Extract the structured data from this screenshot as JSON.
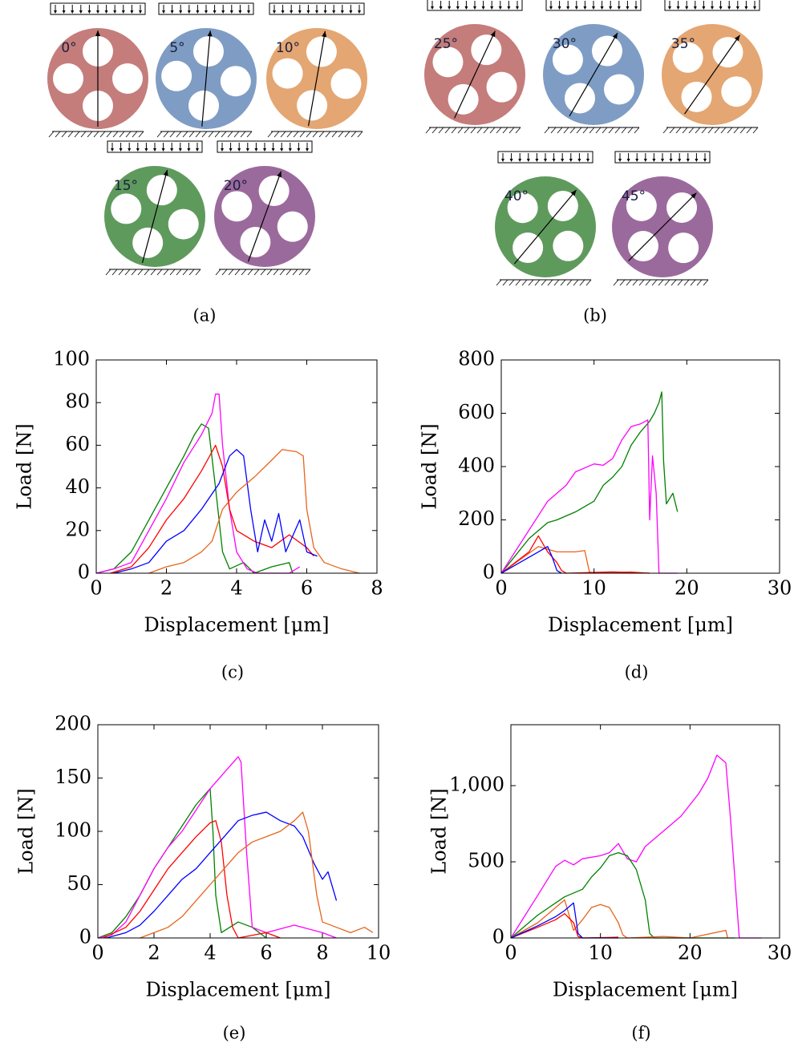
{
  "diagrams": [
    {
      "caption": "(a)",
      "disks": [
        {
          "label": "0°",
          "color": "#c47d7b"
        },
        {
          "label": "5°",
          "color": "#7f9dc4"
        },
        {
          "label": "10°",
          "color": "#e4a672"
        },
        {
          "label": "15°",
          "color": "#5f9a5d"
        },
        {
          "label": "20°",
          "color": "#9b6a9c"
        }
      ]
    },
    {
      "caption": "(b)",
      "disks": [
        {
          "label": "25°",
          "color": "#c47d7b"
        },
        {
          "label": "30°",
          "color": "#7f9dc4"
        },
        {
          "label": "35°",
          "color": "#e4a672"
        },
        {
          "label": "40°",
          "color": "#5f9a5d"
        },
        {
          "label": "45°",
          "color": "#9b6a9c"
        }
      ]
    }
  ],
  "chart_data": [
    {
      "type": "line",
      "caption": "(c)",
      "xlabel": "Displacement [μm]",
      "ylabel": "Load [N]",
      "xlim": [
        0,
        8
      ],
      "ylim": [
        0,
        100
      ],
      "xticks": [
        0,
        2,
        4,
        6,
        8
      ],
      "yticks": [
        0,
        20,
        40,
        60,
        80,
        100
      ],
      "series": [
        {
          "color": "#008000",
          "x": [
            0,
            0.5,
            1,
            1.5,
            2,
            2.5,
            2.8,
            3,
            3.2,
            3.4,
            3.6,
            3.8,
            4.2,
            4.5,
            5,
            5.5,
            5.6
          ],
          "values": [
            0,
            2,
            10,
            25,
            40,
            55,
            65,
            70,
            68,
            40,
            10,
            2,
            5,
            0,
            3,
            5,
            0
          ]
        },
        {
          "color": "#ff00ff",
          "x": [
            0,
            0.5,
            1,
            1.5,
            2,
            2.5,
            3,
            3.3,
            3.4,
            3.5,
            3.6,
            3.8,
            4,
            4.3,
            4.6,
            5.5,
            5.8
          ],
          "values": [
            0,
            2,
            5,
            20,
            35,
            52,
            65,
            75,
            84,
            84,
            60,
            30,
            10,
            2,
            0,
            0,
            3
          ]
        },
        {
          "color": "#ff0000",
          "x": [
            0.4,
            1,
            1.5,
            2,
            2.5,
            3,
            3.4,
            3.6,
            3.8,
            4,
            4.5,
            5,
            5.5,
            6,
            6.2
          ],
          "values": [
            0,
            3,
            12,
            25,
            35,
            48,
            60,
            50,
            30,
            20,
            15,
            12,
            18,
            12,
            8
          ]
        },
        {
          "color": "#0000ff",
          "x": [
            0.5,
            1,
            1.5,
            2,
            2.5,
            3,
            3.5,
            3.8,
            4,
            4.2,
            4.4,
            4.6,
            4.8,
            5,
            5.2,
            5.4,
            5.8,
            6,
            6.3
          ],
          "values": [
            0,
            2,
            5,
            15,
            20,
            30,
            42,
            55,
            58,
            55,
            30,
            10,
            25,
            15,
            28,
            10,
            25,
            10,
            8
          ]
        },
        {
          "color": "#e8641c",
          "x": [
            1.5,
            2,
            2.5,
            3,
            3.3,
            3.6,
            4,
            4.5,
            5,
            5.3,
            5.7,
            5.9,
            6,
            6.2,
            6.5,
            7,
            7.5
          ],
          "values": [
            0,
            3,
            5,
            10,
            15,
            30,
            38,
            45,
            53,
            58,
            57,
            55,
            30,
            12,
            5,
            2,
            0
          ]
        }
      ]
    },
    {
      "type": "line",
      "caption": "(d)",
      "xlabel": "Displacement [μm]",
      "ylabel": "Load [N]",
      "xlim": [
        0,
        30
      ],
      "ylim": [
        0,
        800
      ],
      "xticks": [
        0,
        10,
        20,
        30
      ],
      "yticks": [
        0,
        200,
        400,
        600,
        800
      ],
      "series": [
        {
          "color": "#008000",
          "x": [
            0,
            3,
            5,
            6,
            8,
            10,
            11,
            12,
            13,
            14,
            15,
            16,
            16.5,
            17,
            17.3,
            17.5,
            17.8,
            18.5,
            19
          ],
          "values": [
            0,
            130,
            190,
            200,
            230,
            270,
            330,
            360,
            400,
            480,
            530,
            570,
            600,
            640,
            680,
            420,
            260,
            300,
            230
          ]
        },
        {
          "color": "#ff00ff",
          "x": [
            0,
            5,
            7,
            8,
            9,
            10,
            11,
            12,
            13,
            14,
            15,
            15.8,
            16,
            16.3,
            16.7,
            17,
            18,
            19
          ],
          "values": [
            0,
            270,
            330,
            380,
            395,
            410,
            405,
            430,
            500,
            550,
            560,
            575,
            200,
            440,
            300,
            0,
            0,
            0
          ]
        },
        {
          "color": "#e8641c",
          "x": [
            0,
            2,
            4,
            5,
            6,
            8,
            9,
            9.5,
            10,
            14,
            16
          ],
          "values": [
            0,
            50,
            100,
            90,
            80,
            80,
            85,
            5,
            0,
            5,
            0
          ]
        },
        {
          "color": "#ff0000",
          "x": [
            0,
            3,
            4,
            5,
            6,
            6.5,
            7,
            12,
            16
          ],
          "values": [
            0,
            80,
            140,
            80,
            40,
            10,
            0,
            5,
            0
          ]
        },
        {
          "color": "#0000ff",
          "x": [
            0,
            2,
            4,
            5,
            5.5,
            6,
            6.5
          ],
          "values": [
            0,
            40,
            80,
            100,
            60,
            10,
            0
          ]
        }
      ]
    },
    {
      "type": "line",
      "caption": "(e)",
      "xlabel": "Displacement [μm]",
      "ylabel": "Load [N]",
      "xlim": [
        0,
        10
      ],
      "ylim": [
        0,
        200
      ],
      "xticks": [
        0,
        2,
        4,
        6,
        8,
        10
      ],
      "yticks": [
        0,
        50,
        100,
        150,
        200
      ],
      "series": [
        {
          "color": "#008000",
          "x": [
            0,
            0.5,
            1,
            1.5,
            2,
            2.5,
            3,
            3.5,
            4,
            4.1,
            4.2,
            4.4,
            5,
            5.5,
            6
          ],
          "values": [
            0,
            5,
            20,
            40,
            65,
            85,
            105,
            125,
            140,
            100,
            40,
            5,
            15,
            10,
            0
          ]
        },
        {
          "color": "#ff00ff",
          "x": [
            0,
            0.5,
            1,
            1.5,
            2,
            2.5,
            3,
            3.5,
            4,
            4.5,
            5,
            5.1,
            5.3,
            5.5,
            6,
            7,
            8,
            8.5
          ],
          "values": [
            0,
            3,
            15,
            40,
            65,
            85,
            100,
            120,
            140,
            155,
            170,
            165,
            80,
            10,
            5,
            12,
            5,
            0
          ]
        },
        {
          "color": "#ff0000",
          "x": [
            0.2,
            1,
            1.5,
            2,
            2.5,
            3,
            3.5,
            4,
            4.2,
            4.4,
            4.6,
            4.8,
            5,
            6,
            6.5
          ],
          "values": [
            0,
            10,
            25,
            45,
            65,
            80,
            95,
            108,
            110,
            90,
            40,
            10,
            0,
            5,
            0
          ]
        },
        {
          "color": "#0000ff",
          "x": [
            0.3,
            1,
            1.5,
            2,
            2.5,
            3,
            3.5,
            4,
            4.5,
            5,
            5.5,
            6,
            6.5,
            7,
            7.3,
            7.7,
            8,
            8.2,
            8.5
          ],
          "values": [
            0,
            5,
            12,
            25,
            40,
            55,
            65,
            80,
            95,
            110,
            115,
            118,
            110,
            105,
            95,
            70,
            55,
            62,
            35
          ]
        },
        {
          "color": "#e8641c",
          "x": [
            1.5,
            2,
            2.5,
            3,
            3.5,
            4,
            4.5,
            5,
            5.5,
            6,
            6.5,
            7,
            7.3,
            7.5,
            7.8,
            8,
            8.5,
            9,
            9.5,
            9.8
          ],
          "values": [
            0,
            5,
            10,
            20,
            35,
            50,
            65,
            80,
            90,
            95,
            100,
            110,
            118,
            100,
            40,
            15,
            10,
            5,
            10,
            5
          ]
        }
      ]
    },
    {
      "type": "line",
      "caption": "(f)",
      "xlabel": "Displacement [μm]",
      "ylabel": "Load [N]",
      "xlim": [
        0,
        30
      ],
      "ylim": [
        0,
        1400
      ],
      "xticks": [
        0,
        10,
        20,
        30
      ],
      "yticks": [
        0,
        500,
        {
          "value": 1000,
          "label": "1,000"
        }
      ],
      "series": [
        {
          "color": "#ff00ff",
          "x": [
            0,
            3,
            5,
            6,
            7,
            8,
            10,
            11,
            12,
            13,
            14,
            15,
            17,
            19,
            21,
            22,
            23,
            24,
            24.5,
            25,
            25.5,
            28
          ],
          "values": [
            0,
            280,
            470,
            510,
            480,
            520,
            540,
            560,
            620,
            520,
            500,
            600,
            700,
            800,
            950,
            1050,
            1200,
            1150,
            800,
            400,
            0,
            0
          ]
        },
        {
          "color": "#008000",
          "x": [
            0,
            3,
            6,
            8,
            9,
            10,
            11,
            12,
            13,
            14,
            15,
            15.5,
            16,
            25
          ],
          "values": [
            0,
            150,
            270,
            320,
            400,
            460,
            540,
            560,
            540,
            450,
            250,
            30,
            0,
            0
          ]
        },
        {
          "color": "#e8641c",
          "x": [
            0,
            3,
            5,
            6,
            7,
            8,
            9,
            10,
            11,
            12,
            12.5,
            13,
            17,
            20,
            24,
            24.2
          ],
          "values": [
            0,
            100,
            200,
            250,
            50,
            120,
            200,
            220,
            200,
            100,
            20,
            0,
            10,
            0,
            50,
            0
          ]
        },
        {
          "color": "#ff0000",
          "x": [
            0,
            3,
            5,
            6,
            7,
            7.5,
            8,
            12
          ],
          "values": [
            0,
            70,
            120,
            160,
            100,
            10,
            0,
            5
          ]
        },
        {
          "color": "#0000ff",
          "x": [
            0,
            3,
            5,
            6,
            7,
            7.5,
            8,
            12
          ],
          "values": [
            0,
            80,
            140,
            180,
            230,
            30,
            0,
            0
          ]
        }
      ]
    }
  ]
}
